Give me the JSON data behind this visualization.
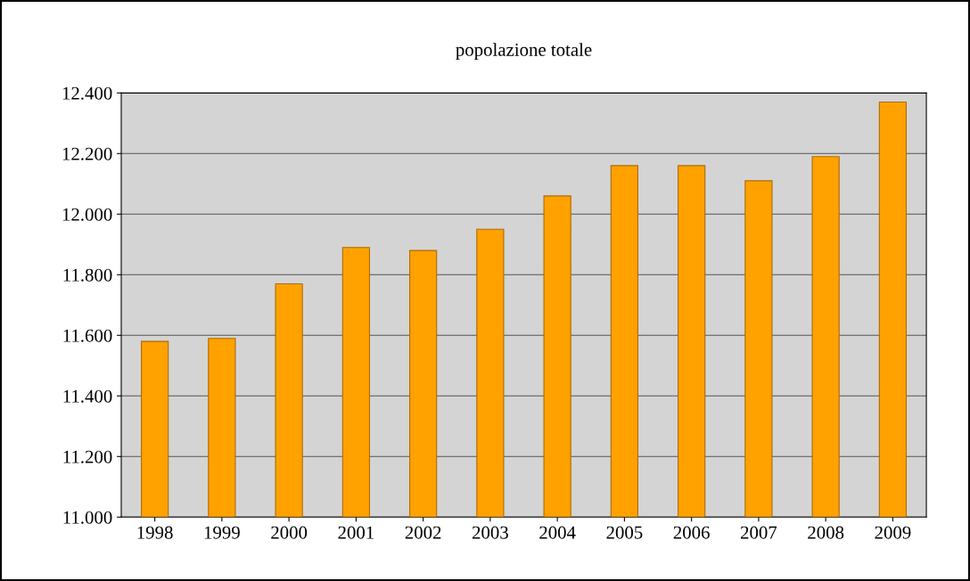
{
  "chart_data": {
    "type": "bar",
    "title": "popolazione totale",
    "categories": [
      "1998",
      "1999",
      "2000",
      "2001",
      "2002",
      "2003",
      "2004",
      "2005",
      "2006",
      "2007",
      "2008",
      "2009"
    ],
    "values": [
      11580,
      11590,
      11770,
      11890,
      11880,
      11950,
      12060,
      12160,
      12160,
      12110,
      12190,
      12370
    ],
    "color": "#ffa200",
    "ylim": [
      11000,
      12400
    ],
    "yticks": [
      {
        "value": 11000,
        "label": "11.000"
      },
      {
        "value": 11200,
        "label": "11.200"
      },
      {
        "value": 11400,
        "label": "11.400"
      },
      {
        "value": 11600,
        "label": "11.600"
      },
      {
        "value": 11800,
        "label": "11.800"
      },
      {
        "value": 12000,
        "label": "12.000"
      },
      {
        "value": 12200,
        "label": "12.200"
      },
      {
        "value": 12400,
        "label": "12.400"
      }
    ],
    "grid": "y"
  }
}
